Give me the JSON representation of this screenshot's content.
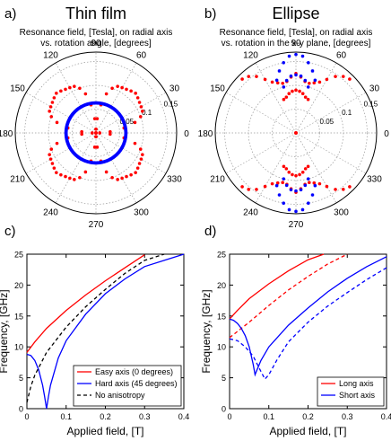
{
  "colors": {
    "red": "#ff0000",
    "blue": "#0000ff",
    "black": "#000000",
    "grid": "#999999"
  },
  "chart_data": [
    {
      "panel_letter": "a)",
      "title": "Thin film",
      "subtitle_line1": "Resonance field, [Tesla], on radial axis",
      "subtitle_line2": "vs. rotation angle, [degrees]",
      "type": "polar",
      "angle_labels": [
        "90",
        "60",
        "30",
        "0",
        "330",
        "300",
        "270",
        "240",
        "210",
        "180",
        "150",
        "120"
      ],
      "radial_labels": [
        "0.05",
        "0.1",
        "0.15"
      ],
      "r_max": 0.17,
      "series": [
        {
          "color": "red",
          "marker": "dot",
          "points": [
            [
              0,
              0.008
            ],
            [
              5,
              0.03
            ],
            [
              10,
              0.06
            ],
            [
              15,
              0.085
            ],
            [
              20,
              0.1
            ],
            [
              25,
              0.108
            ],
            [
              30,
              0.11
            ],
            [
              35,
              0.112
            ],
            [
              40,
              0.115
            ],
            [
              45,
              0.118
            ],
            [
              50,
              0.115
            ],
            [
              55,
              0.112
            ],
            [
              60,
              0.11
            ],
            [
              65,
              0.108
            ],
            [
              70,
              0.1
            ],
            [
              75,
              0.085
            ],
            [
              80,
              0.06
            ],
            [
              85,
              0.03
            ],
            [
              90,
              0.008
            ]
          ]
        },
        {
          "color": "blue",
          "marker": "dot",
          "constant_r": 0.063
        }
      ]
    },
    {
      "panel_letter": "b)",
      "title": "Ellipse",
      "subtitle_line1": "Resonance field, [Tesla], on radial axis",
      "subtitle_line2": "vs. rotation in the x-y plane, [degrees]",
      "type": "polar",
      "angle_labels": [
        "90",
        "60",
        "30",
        "0",
        "330",
        "300",
        "270",
        "240",
        "210",
        "180",
        "150",
        "120"
      ],
      "radial_labels": [
        "0.05",
        "0.1",
        "0.15"
      ],
      "r_max": 0.17,
      "series": [
        {
          "color": "red",
          "marker": "dot",
          "points": [
            [
              45,
              0.16
            ],
            [
              50,
              0.155
            ],
            [
              55,
              0.145
            ],
            [
              60,
              0.13
            ],
            [
              65,
              0.118
            ],
            [
              70,
              0.112
            ],
            [
              75,
              0.108
            ],
            [
              80,
              0.11
            ],
            [
              85,
              0.118
            ],
            [
              90,
              0.125
            ],
            [
              95,
              0.118
            ],
            [
              100,
              0.11
            ],
            [
              105,
              0.108
            ],
            [
              110,
              0.112
            ],
            [
              115,
              0.118
            ],
            [
              120,
              0.13
            ],
            [
              125,
              0.145
            ],
            [
              130,
              0.155
            ],
            [
              135,
              0.16
            ],
            [
              70,
              0.075
            ],
            [
              75,
              0.078
            ],
            [
              80,
              0.084
            ],
            [
              85,
              0.088
            ],
            [
              90,
              0.09
            ],
            [
              95,
              0.088
            ],
            [
              100,
              0.084
            ],
            [
              105,
              0.078
            ],
            [
              110,
              0.075
            ]
          ]
        },
        {
          "color": "blue",
          "marker": "dot",
          "points": [
            [
              70,
              0.118
            ],
            [
              75,
              0.135
            ],
            [
              80,
              0.15
            ],
            [
              85,
              0.162
            ],
            [
              90,
              0.165
            ],
            [
              95,
              0.162
            ],
            [
              100,
              0.15
            ],
            [
              105,
              0.135
            ],
            [
              110,
              0.118
            ],
            [
              75,
              0.1
            ],
            [
              80,
              0.112
            ],
            [
              85,
              0.12
            ],
            [
              90,
              0.122
            ],
            [
              95,
              0.12
            ],
            [
              100,
              0.112
            ],
            [
              105,
              0.1
            ]
          ]
        }
      ]
    },
    {
      "panel_letter": "c)",
      "type": "line",
      "xlabel": "Applied field, [T]",
      "ylabel": "Frequency, [GHz]",
      "xlim": [
        0,
        0.4
      ],
      "ylim": [
        0,
        25
      ],
      "xticks": [
        "0",
        "0.1",
        "0.2",
        "0.3",
        "0.4"
      ],
      "yticks": [
        "0",
        "5",
        "10",
        "15",
        "20",
        "25"
      ],
      "legend_position": "bottom-right",
      "series": [
        {
          "name": "Easy axis (0 degrees)",
          "color": "red",
          "dash": "solid",
          "x": [
            0,
            0.02,
            0.05,
            0.1,
            0.15,
            0.2,
            0.25,
            0.3
          ],
          "y": [
            9.1,
            10.8,
            13.0,
            15.9,
            18.4,
            20.7,
            22.8,
            24.9
          ]
        },
        {
          "name": "Hard axis (45 degrees)",
          "color": "blue",
          "dash": "solid",
          "x": [
            0,
            0.01,
            0.02,
            0.03,
            0.04,
            0.045,
            0.05,
            0.055,
            0.06,
            0.08,
            0.1,
            0.15,
            0.2,
            0.25,
            0.3,
            0.35,
            0.4
          ],
          "y": [
            8.8,
            8.6,
            7.8,
            6.3,
            3.8,
            2.0,
            0.0,
            2.0,
            3.8,
            8.2,
            11.0,
            15.3,
            18.6,
            21.0,
            23.0,
            24.0,
            25.0
          ]
        },
        {
          "name": "No anisotropy",
          "color": "black",
          "dash": "dashed",
          "x": [
            0,
            0.01,
            0.02,
            0.05,
            0.1,
            0.15,
            0.2,
            0.25,
            0.3,
            0.35
          ],
          "y": [
            1.0,
            3.6,
            5.4,
            9.1,
            13.2,
            16.5,
            19.3,
            21.9,
            24.0,
            25.5
          ]
        }
      ]
    },
    {
      "panel_letter": "d)",
      "type": "line",
      "xlabel": "Applied field, [T]",
      "ylabel": "Frequency, [GHz]",
      "xlim": [
        0,
        0.4
      ],
      "ylim": [
        0,
        25
      ],
      "xticks": [
        "0",
        "0.1",
        "0.2",
        "0.3",
        "0.4"
      ],
      "yticks": [
        "0",
        "5",
        "10",
        "15",
        "20",
        "25"
      ],
      "legend_position": "bottom-right",
      "series": [
        {
          "name": "Long axis",
          "color": "red",
          "dash": "solid",
          "x": [
            0,
            0.02,
            0.05,
            0.1,
            0.15,
            0.2,
            0.24
          ],
          "y": [
            14.5,
            15.9,
            17.8,
            20.2,
            22.3,
            24.1,
            25.0
          ]
        },
        {
          "name": "",
          "color": "red",
          "dash": "dashed",
          "x": [
            0,
            0.05,
            0.1,
            0.15,
            0.2,
            0.25,
            0.3
          ],
          "y": [
            11.5,
            14.0,
            16.7,
            19.2,
            21.4,
            23.4,
            25.0
          ]
        },
        {
          "name": "Short axis",
          "color": "blue",
          "dash": "solid",
          "x": [
            0,
            0.01,
            0.02,
            0.03,
            0.04,
            0.05,
            0.06,
            0.065,
            0.07,
            0.08,
            0.1,
            0.15,
            0.2,
            0.25,
            0.3,
            0.35,
            0.4
          ],
          "y": [
            14.5,
            14.3,
            13.8,
            13.0,
            11.8,
            10.0,
            7.2,
            5.5,
            6.3,
            7.8,
            10.0,
            13.5,
            16.3,
            18.9,
            21.1,
            23.0,
            24.6
          ]
        },
        {
          "name": "",
          "color": "blue",
          "dash": "dashed",
          "x": [
            0,
            0.02,
            0.04,
            0.06,
            0.08,
            0.09,
            0.1,
            0.12,
            0.15,
            0.2,
            0.25,
            0.3,
            0.35,
            0.4
          ],
          "y": [
            11.3,
            11.0,
            10.0,
            8.5,
            6.0,
            4.8,
            5.5,
            7.8,
            10.8,
            14.0,
            16.6,
            18.8,
            20.9,
            22.8
          ]
        }
      ]
    }
  ]
}
